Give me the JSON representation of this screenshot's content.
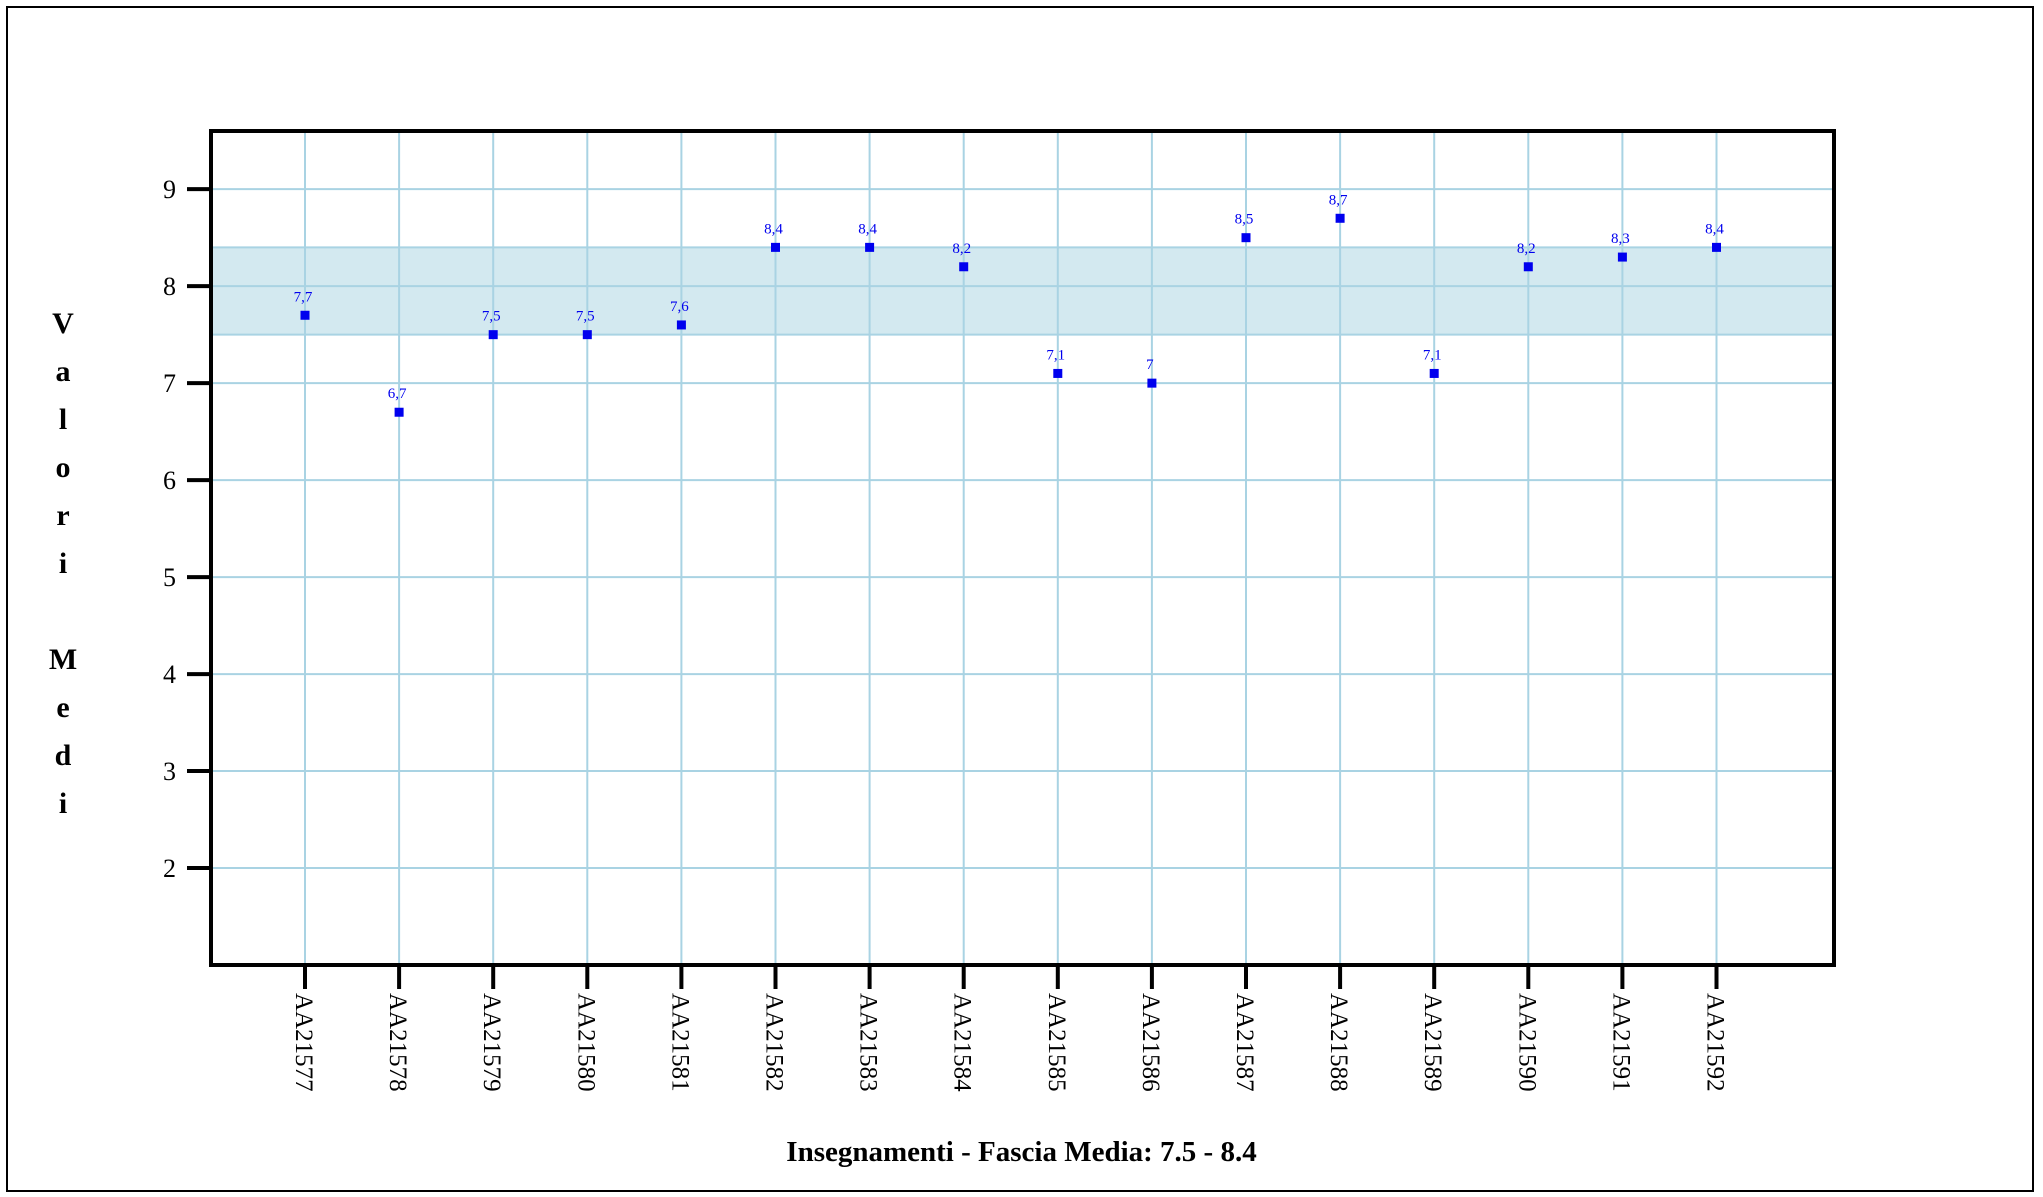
{
  "chart_data": {
    "type": "scatter",
    "title": "",
    "xlabel": "Insegnamenti - Fascia Media: 7.5 - 8.4",
    "ylabel": "Valori Medi",
    "ylim": [
      1,
      9.6
    ],
    "yticks": [
      2,
      3,
      4,
      5,
      6,
      7,
      8,
      9
    ],
    "grid": true,
    "band": {
      "from": 7.5,
      "to": 8.4,
      "color": "#d3e9f0"
    },
    "categories": [
      "AA21577",
      "AA21578",
      "AA21579",
      "AA21580",
      "AA21581",
      "AA21582",
      "AA21583",
      "AA21584",
      "AA21585",
      "AA21586",
      "AA21587",
      "AA21588",
      "AA21589",
      "AA21590",
      "AA21591",
      "AA21592"
    ],
    "values": [
      7.7,
      6.7,
      7.5,
      7.5,
      7.6,
      8.4,
      8.4,
      8.2,
      7.1,
      7.0,
      8.5,
      8.7,
      7.1,
      8.2,
      8.3,
      8.4
    ],
    "data_labels": [
      "7,7",
      "6,7",
      "7,5",
      "7,5",
      "7,6",
      "8,4",
      "8,4",
      "8,2",
      "7,1",
      "7",
      "8,5",
      "8,7",
      "7,1",
      "8,2",
      "8,3",
      "8,4"
    ],
    "colors": {
      "point": "#0000ee",
      "grid": "#a9d3e3",
      "axis": "#000000"
    }
  }
}
